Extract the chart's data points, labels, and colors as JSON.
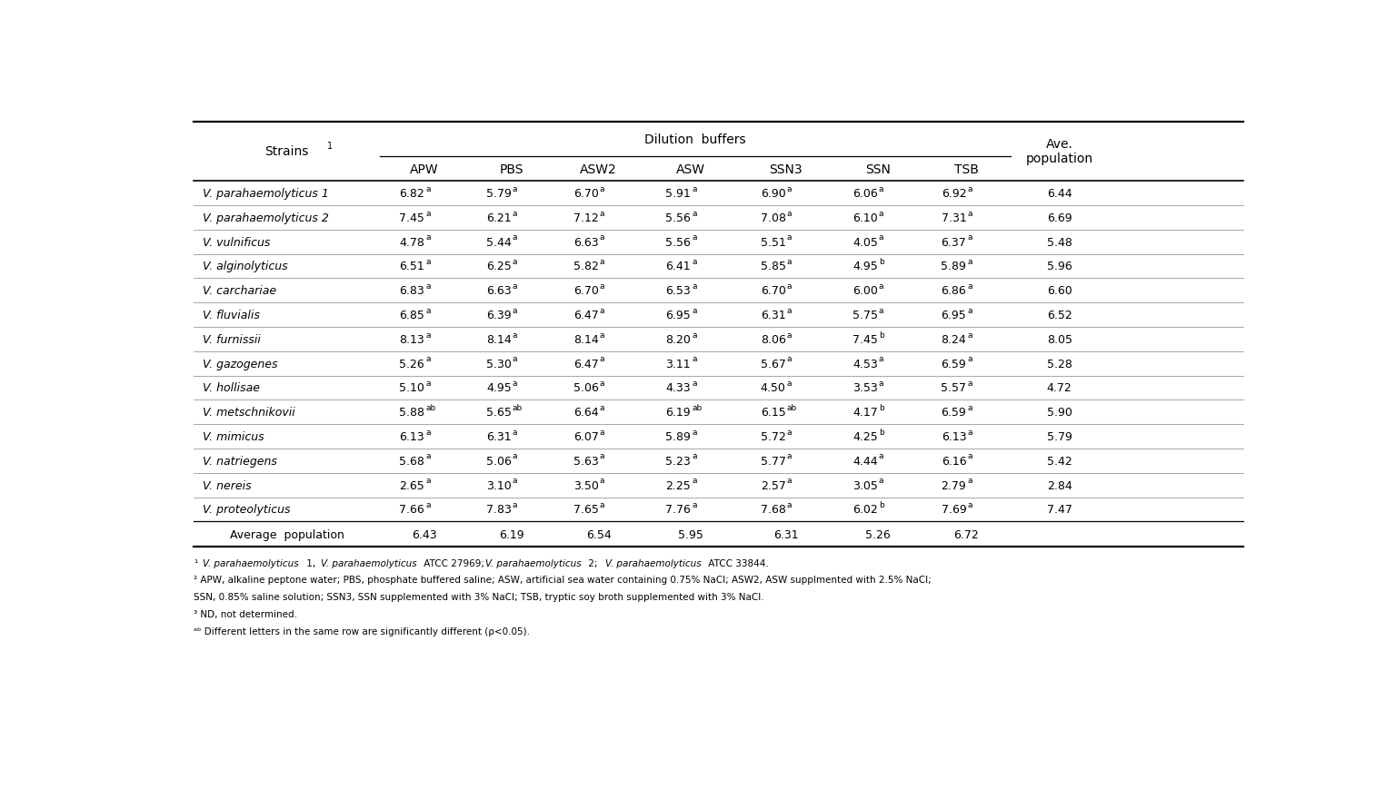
{
  "col_headers": [
    "APW",
    "PBS",
    "ASW2",
    "ASW",
    "SSN3",
    "SSN",
    "TSB"
  ],
  "strains": [
    "V. parahaemolyticus 1",
    "V. parahaemolyticus 2",
    "V. vulnificus",
    "V. alginolyticus",
    "V. carchariae",
    "V. fluvialis",
    "V. furnissii",
    "V. gazogenes",
    "V. hollisae",
    "V. metschnikovii",
    "V. mimicus",
    "V. natriegens",
    "V. nereis",
    "V. proteolyticus"
  ],
  "data": [
    [
      "6.82a",
      "5.79a",
      "6.70a",
      "5.91a",
      "6.90a",
      "6.06a",
      "6.92a",
      "6.44"
    ],
    [
      "7.45a",
      "6.21a",
      "7.12a",
      "5.56a",
      "7.08a",
      "6.10a",
      "7.31a",
      "6.69"
    ],
    [
      "4.78a",
      "5.44a",
      "6.63a",
      "5.56a",
      "5.51a",
      "4.05a",
      "6.37a",
      "5.48"
    ],
    [
      "6.51a",
      "6.25a",
      "5.82a",
      "6.41a",
      "5.85a",
      "4.95b",
      "5.89a",
      "5.96"
    ],
    [
      "6.83a",
      "6.63a",
      "6.70a",
      "6.53a",
      "6.70a",
      "6.00a",
      "6.86a",
      "6.60"
    ],
    [
      "6.85a",
      "6.39a",
      "6.47a",
      "6.95a",
      "6.31a",
      "5.75a",
      "6.95a",
      "6.52"
    ],
    [
      "8.13a",
      "8.14a",
      "8.14a",
      "8.20a",
      "8.06a",
      "7.45b",
      "8.24a",
      "8.05"
    ],
    [
      "5.26a",
      "5.30a",
      "6.47a",
      "3.11a",
      "5.67a",
      "4.53a",
      "6.59a",
      "5.28"
    ],
    [
      "5.10a",
      "4.95a",
      "5.06a",
      "4.33a",
      "4.50a",
      "3.53a",
      "5.57a",
      "4.72"
    ],
    [
      "5.88ab",
      "5.65ab",
      "6.64a",
      "6.19ab",
      "6.15ab",
      "4.17b",
      "6.59a",
      "5.90"
    ],
    [
      "6.13a",
      "6.31a",
      "6.07a",
      "5.89a",
      "5.72a",
      "4.25b",
      "6.13a",
      "5.79"
    ],
    [
      "5.68a",
      "5.06a",
      "5.63a",
      "5.23a",
      "5.77a",
      "4.44a",
      "6.16a",
      "5.42"
    ],
    [
      "2.65a",
      "3.10a",
      "3.50a",
      "2.25a",
      "2.57a",
      "3.05a",
      "2.79a",
      "2.84"
    ],
    [
      "7.66a",
      "7.83a",
      "7.65a",
      "7.76a",
      "7.68a",
      "6.02b",
      "7.69a",
      "7.47"
    ]
  ],
  "avg_vals": [
    "6.43",
    "6.19",
    "6.54",
    "5.95",
    "6.31",
    "5.26",
    "6.72"
  ],
  "footnote1": " V. parahaemolyticus 1, V. parahaemolyticus ATCC 27969; V. parahaemolyticus 2; V. parahaemolyticus ATCC 33844.",
  "footnote2": " APW, alkaline peptone water; PBS, phosphate buffered saline; ASW, artificial sea water containing 0.75% NaCl; ASW2, ASW supplmented with 2.5% NaCl;",
  "footnote3": "SSN, 0.85% saline solution; SSN3, SSN supplemented with 3% NaCl; TSB, tryptic soy broth supplemented with 3% NaCl.",
  "footnote4": " ND, not determined.",
  "footnote5": " Different letters in the same row are significantly different (p<0.05).",
  "bg_color": "#ffffff",
  "text_color": "#000000"
}
